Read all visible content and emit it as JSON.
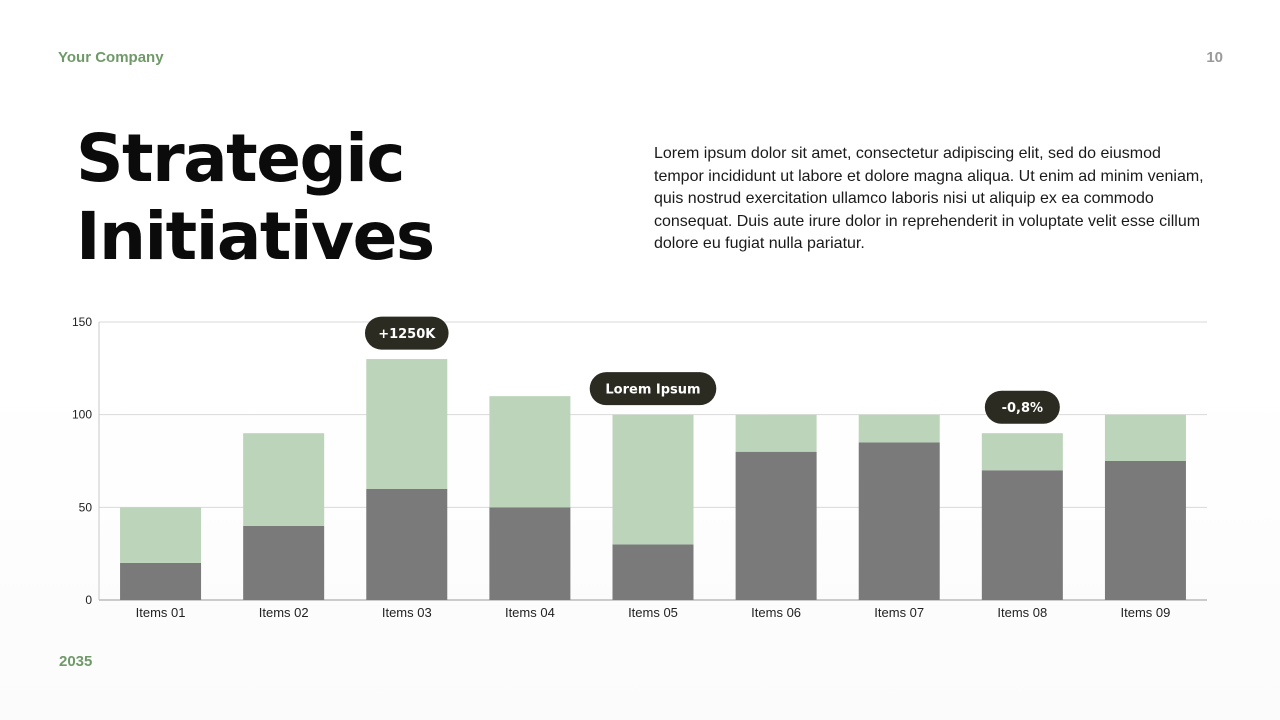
{
  "header": {
    "company": "Your Company",
    "page_number": "10"
  },
  "title": {
    "line1": "Strategic",
    "line2": "Initiatives"
  },
  "body": {
    "paragraph": "Lorem ipsum dolor sit amet, consectetur adipiscing elit, sed do eiusmod tempor incididunt ut labore et dolore magna aliqua. Ut enim ad minim veniam, quis nostrud exercitation ullamco laboris nisi ut aliquip ex ea commodo consequat. Duis aute irure dolor in reprehenderit in voluptate velit esse cillum dolore eu fugiat nulla pariatur."
  },
  "footer": {
    "year": "2035"
  },
  "colors": {
    "accent": "#6f9a68",
    "series_dark": "#7a7a7a",
    "series_light": "#bcd4b9",
    "bubble": "#2b2b22",
    "grid": "#d9d9d9"
  },
  "chart_data": {
    "type": "bar",
    "stacked": true,
    "categories": [
      "Items 01",
      "Items 02",
      "Items 03",
      "Items 04",
      "Items 05",
      "Items 06",
      "Items 07",
      "Items 08",
      "Items 09"
    ],
    "series": [
      {
        "values": [
          20,
          40,
          60,
          50,
          30,
          80,
          85,
          70,
          75
        ],
        "color": "#7a7a7a"
      },
      {
        "values": [
          30,
          50,
          70,
          60,
          70,
          20,
          15,
          20,
          25
        ],
        "color": "#bcd4b9"
      }
    ],
    "ylim": [
      0,
      150
    ],
    "yticks": [
      0,
      50,
      100,
      150
    ],
    "grid": true,
    "annotations": [
      {
        "category": "Items 03",
        "text": "+1250K"
      },
      {
        "category": "Items 05",
        "text": "Lorem Ipsum"
      },
      {
        "category": "Items 08",
        "text": "-0,8%"
      }
    ]
  }
}
